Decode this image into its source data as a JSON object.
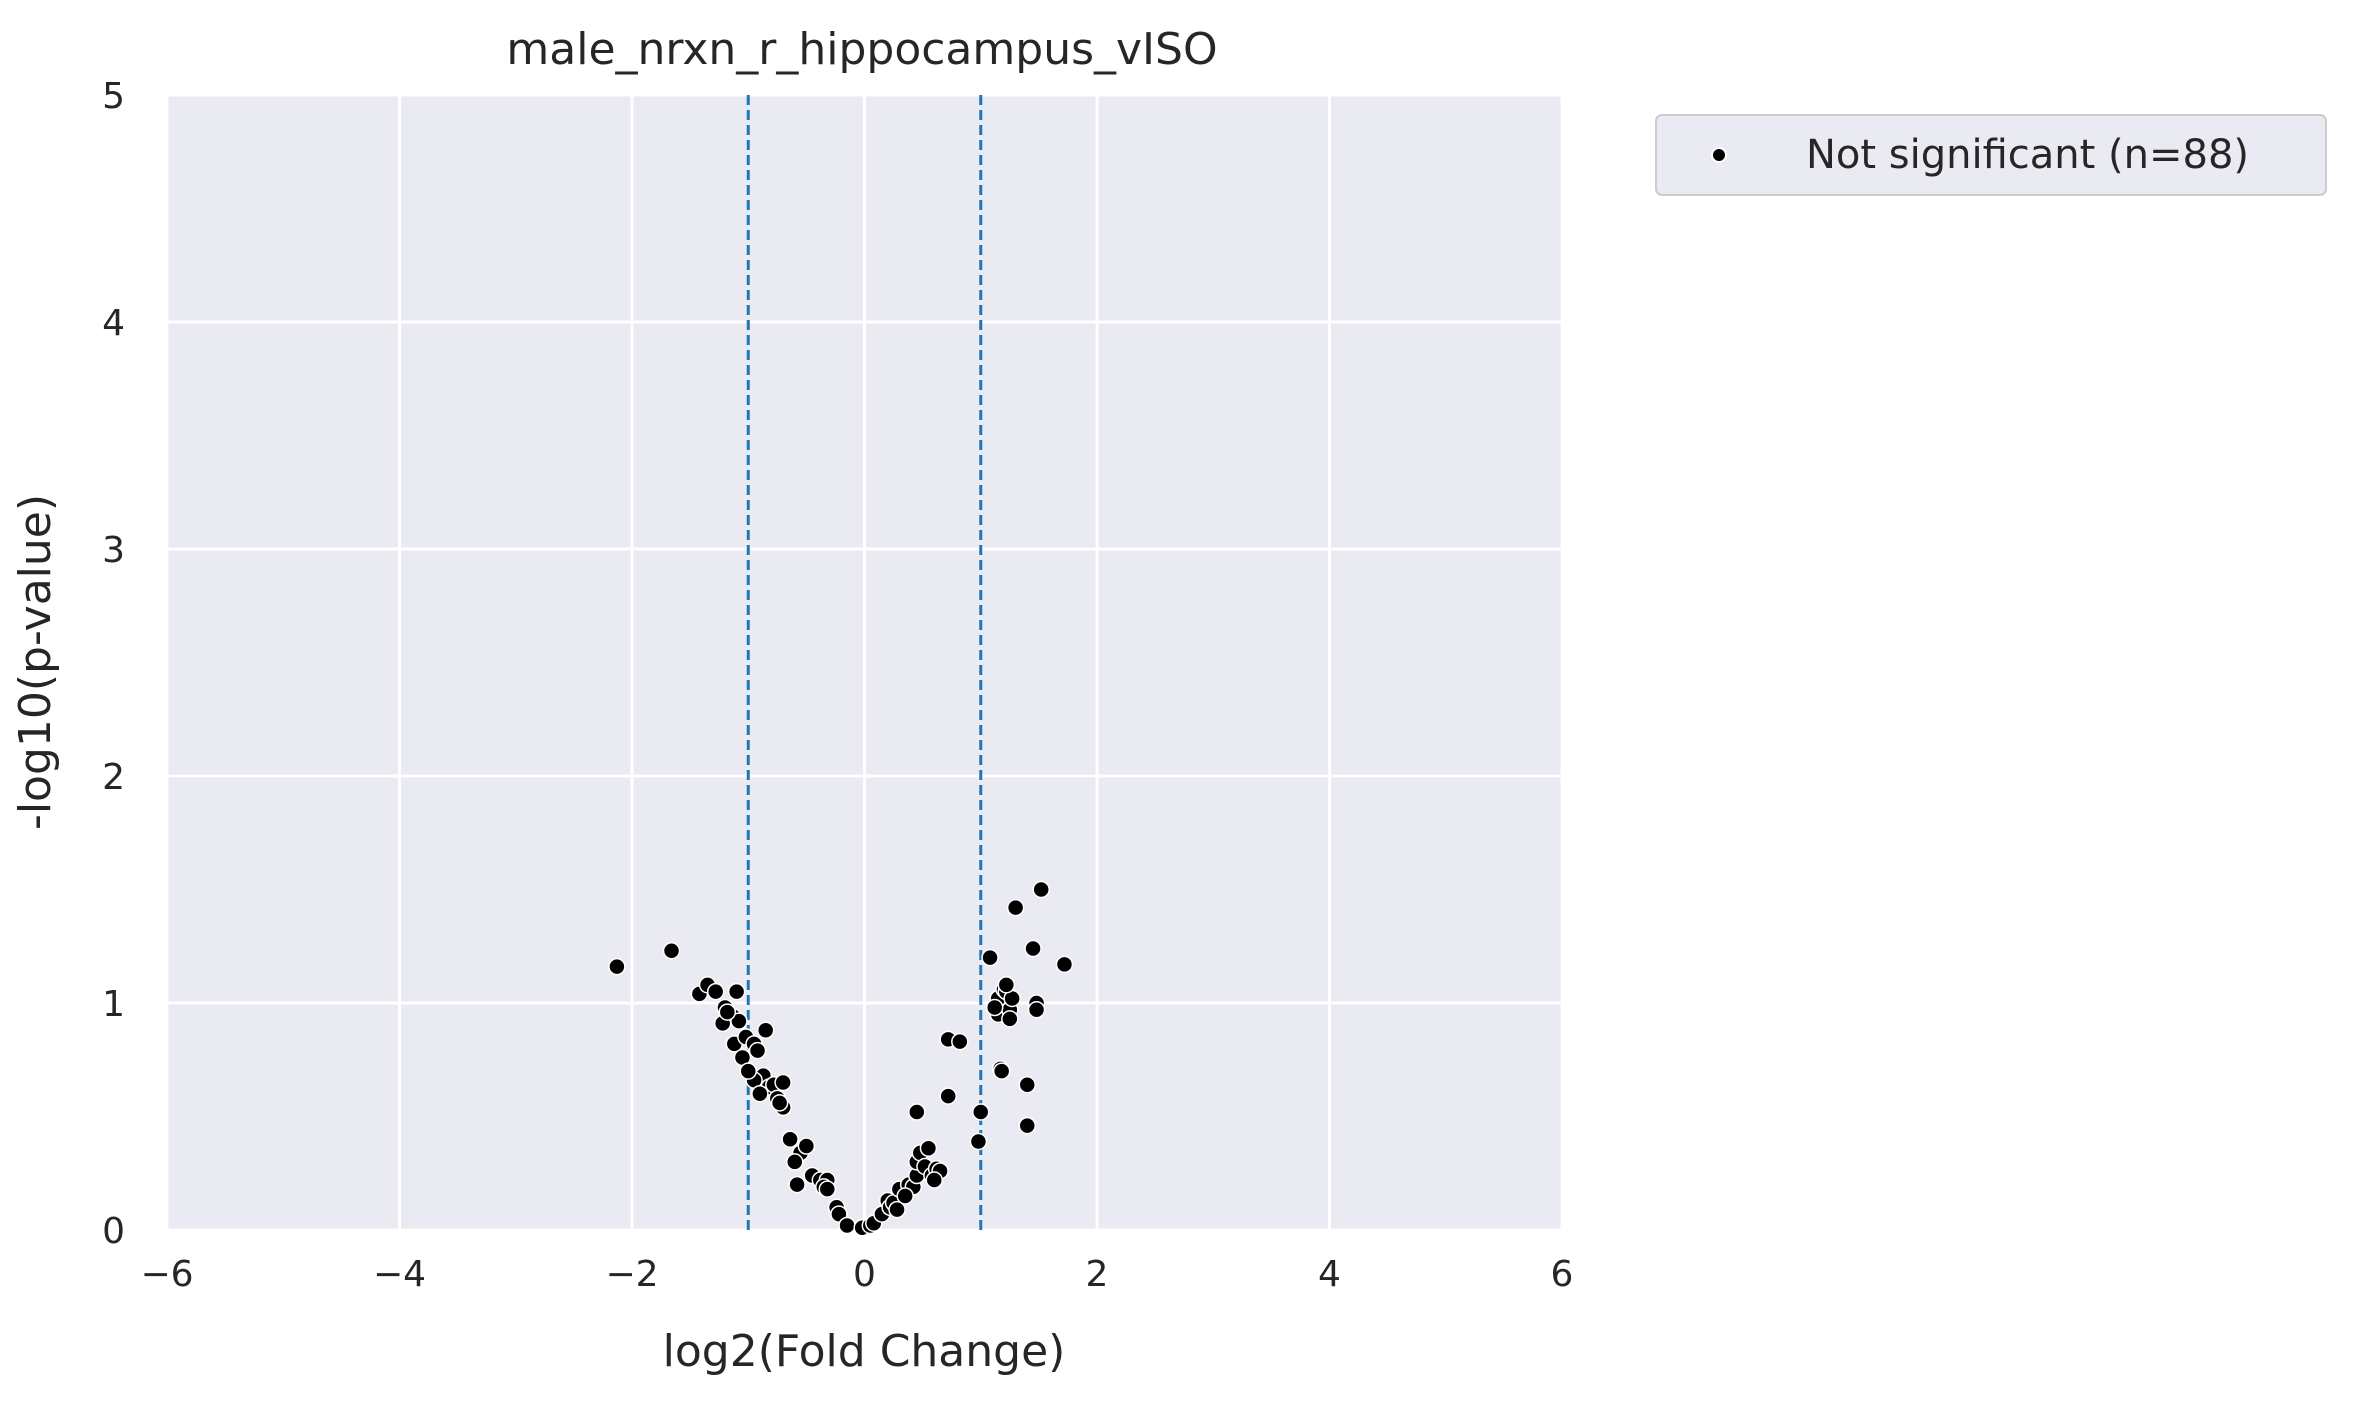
{
  "chart_data": {
    "type": "scatter",
    "title": "male_nrxn_r_hippocampus_vISO",
    "xlabel": "log2(Fold Change)",
    "ylabel": "-log10(p-value)",
    "xlim": [
      -6,
      6
    ],
    "ylim": [
      0,
      5
    ],
    "xticks": [
      -6,
      -4,
      -2,
      0,
      2,
      4,
      6
    ],
    "xtick_labels": [
      "−6",
      "−4",
      "−2",
      "0",
      "2",
      "4",
      "6"
    ],
    "yticks": [
      0,
      1,
      2,
      3,
      4,
      5
    ],
    "ytick_labels": [
      "0",
      "1",
      "2",
      "3",
      "4",
      "5"
    ],
    "grid": true,
    "background": "#eaeaf2",
    "threshold_lines": {
      "x": [
        -1,
        1
      ],
      "color": "#1f77b4",
      "style": "dashed"
    },
    "legend": {
      "position": "outside-top-right",
      "entries": [
        "Not significant (n=88)"
      ]
    },
    "series": [
      {
        "name": "Not significant (n=88)",
        "color": "#000000",
        "points": [
          [
            -2.13,
            1.16
          ],
          [
            -1.66,
            1.23
          ],
          [
            -1.42,
            1.04
          ],
          [
            -1.35,
            1.08
          ],
          [
            -1.28,
            1.05
          ],
          [
            -1.2,
            0.98
          ],
          [
            -1.13,
            0.94
          ],
          [
            -1.22,
            0.91
          ],
          [
            -1.1,
            1.05
          ],
          [
            -1.08,
            0.92
          ],
          [
            -1.12,
            0.82
          ],
          [
            -1.05,
            0.76
          ],
          [
            -1.02,
            0.85
          ],
          [
            -0.95,
            0.82
          ],
          [
            -0.92,
            0.79
          ],
          [
            -0.85,
            0.88
          ],
          [
            -0.87,
            0.68
          ],
          [
            -0.95,
            0.66
          ],
          [
            -0.82,
            0.63
          ],
          [
            -0.78,
            0.64
          ],
          [
            -0.75,
            0.58
          ],
          [
            -0.7,
            0.65
          ],
          [
            -0.7,
            0.54
          ],
          [
            -0.73,
            0.56
          ],
          [
            -0.64,
            0.4
          ],
          [
            -0.55,
            0.34
          ],
          [
            -0.5,
            0.37
          ],
          [
            -0.58,
            0.2
          ],
          [
            -0.45,
            0.24
          ],
          [
            -0.38,
            0.22
          ],
          [
            -0.32,
            0.22
          ],
          [
            -0.35,
            0.19
          ],
          [
            -0.32,
            0.18
          ],
          [
            -0.24,
            0.1
          ],
          [
            -0.22,
            0.07
          ],
          [
            -0.15,
            0.02
          ],
          [
            -0.02,
            0.01
          ],
          [
            0.05,
            0.02
          ],
          [
            0.08,
            0.03
          ],
          [
            0.15,
            0.07
          ],
          [
            0.2,
            0.13
          ],
          [
            0.22,
            0.1
          ],
          [
            0.25,
            0.12
          ],
          [
            0.28,
            0.09
          ],
          [
            0.3,
            0.18
          ],
          [
            0.38,
            0.2
          ],
          [
            0.42,
            0.19
          ],
          [
            0.45,
            0.24
          ],
          [
            0.45,
            0.3
          ],
          [
            0.48,
            0.34
          ],
          [
            0.52,
            0.28
          ],
          [
            0.55,
            0.36
          ],
          [
            0.58,
            0.24
          ],
          [
            0.62,
            0.27
          ],
          [
            0.65,
            0.26
          ],
          [
            0.45,
            0.52
          ],
          [
            0.72,
            0.59
          ],
          [
            0.72,
            0.84
          ],
          [
            0.82,
            0.83
          ],
          [
            0.98,
            0.39
          ],
          [
            1.0,
            0.52
          ],
          [
            1.08,
            1.2
          ],
          [
            1.15,
            0.95
          ],
          [
            1.18,
            1.0
          ],
          [
            1.15,
            1.02
          ],
          [
            1.2,
            1.06
          ],
          [
            1.22,
            1.05
          ],
          [
            1.25,
            0.97
          ],
          [
            1.27,
            1.02
          ],
          [
            1.25,
            0.93
          ],
          [
            1.17,
            0.71
          ],
          [
            1.18,
            0.7
          ],
          [
            1.3,
            1.42
          ],
          [
            1.4,
            0.64
          ],
          [
            1.4,
            0.46
          ],
          [
            1.45,
            1.24
          ],
          [
            1.48,
            1.0
          ],
          [
            1.48,
            0.97
          ],
          [
            1.52,
            1.5
          ],
          [
            1.72,
            1.17
          ],
          [
            -1.18,
            0.96
          ],
          [
            -1.0,
            0.7
          ],
          [
            -0.9,
            0.6
          ],
          [
            -0.6,
            0.3
          ],
          [
            0.35,
            0.15
          ],
          [
            0.6,
            0.22
          ],
          [
            1.12,
            0.98
          ],
          [
            1.22,
            1.08
          ]
        ]
      }
    ]
  }
}
